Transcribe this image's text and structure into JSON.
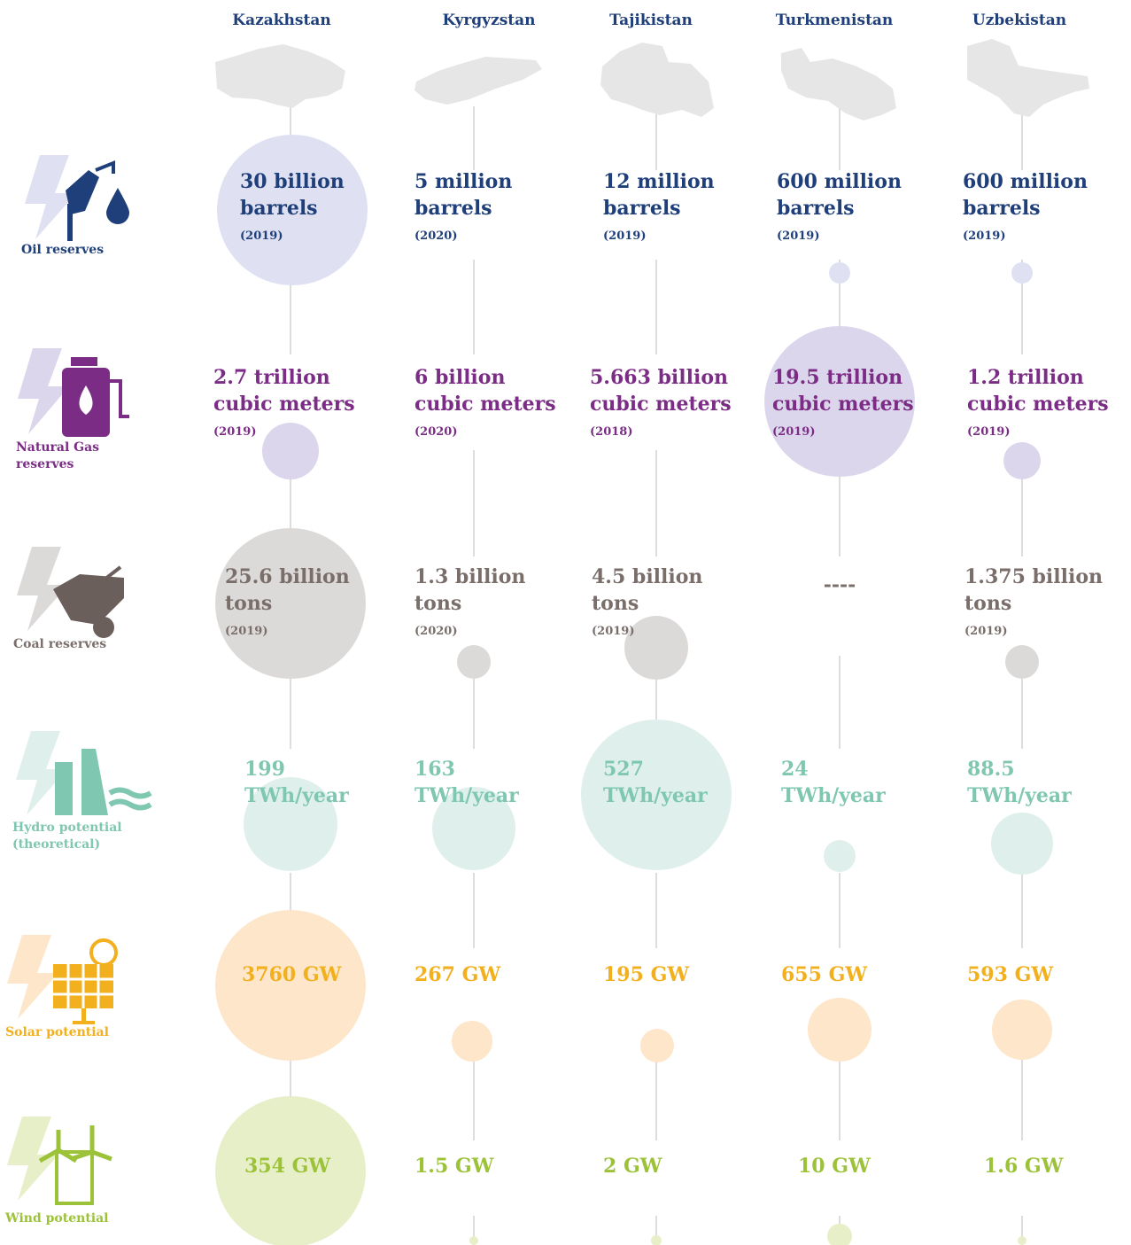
{
  "countries": [
    "Kazakhstan",
    "Kyrgyzstan",
    "Tajikistan",
    "Turkmenistan",
    "Uzbekistan"
  ],
  "rows": [
    {
      "label": [
        "Oil reserves"
      ],
      "cells": [
        {
          "value": [
            "30 billion",
            "barrels"
          ],
          "year": "(2019)"
        },
        {
          "value": [
            "5 million",
            "barrels"
          ],
          "year": "(2020)"
        },
        {
          "value": [
            "12 million",
            "barrels"
          ],
          "year": "(2019)"
        },
        {
          "value": [
            "600 million",
            "barrels"
          ],
          "year": "(2019)"
        },
        {
          "value": [
            "600 million",
            "barrels"
          ],
          "year": "(2019)"
        }
      ]
    },
    {
      "label": [
        "Natural Gas",
        "reserves"
      ],
      "cells": [
        {
          "value": [
            "2.7 trillion",
            "cubic meters"
          ],
          "year": "(2019)"
        },
        {
          "value": [
            "6 billion",
            "cubic meters"
          ],
          "year": "(2020)"
        },
        {
          "value": [
            "5.663 billion",
            "cubic meters"
          ],
          "year": "(2018)"
        },
        {
          "value": [
            "19.5 trillion",
            "cubic meters"
          ],
          "year": "(2019)"
        },
        {
          "value": [
            "1.2 trillion",
            "cubic meters"
          ],
          "year": "(2019)"
        }
      ]
    },
    {
      "label": [
        "Coal reserves"
      ],
      "cells": [
        {
          "value": [
            "25.6 billion",
            "tons"
          ],
          "year": "(2019)"
        },
        {
          "value": [
            "1.3 billion",
            "tons"
          ],
          "year": "(2020)"
        },
        {
          "value": [
            "4.5 billion",
            "tons"
          ],
          "year": "(2019)"
        },
        {
          "value": [
            "----"
          ]
        },
        {
          "value": [
            "1.375 billion",
            "tons"
          ],
          "year": "(2019)"
        }
      ]
    },
    {
      "label": [
        "Hydro potential",
        "(theoretical)"
      ],
      "cells": [
        {
          "value": [
            "199",
            "TWh/year"
          ]
        },
        {
          "value": [
            "163",
            "TWh/year"
          ]
        },
        {
          "value": [
            "527",
            "TWh/year"
          ]
        },
        {
          "value": [
            "24",
            "TWh/year"
          ]
        },
        {
          "value": [
            "88.5",
            "TWh/year"
          ]
        }
      ]
    },
    {
      "label": [
        "Solar potential"
      ],
      "cells": [
        {
          "value": [
            "3760 GW"
          ]
        },
        {
          "value": [
            "267 GW"
          ]
        },
        {
          "value": [
            "195 GW"
          ]
        },
        {
          "value": [
            "655 GW"
          ]
        },
        {
          "value": [
            "593 GW"
          ]
        }
      ]
    },
    {
      "label": [
        "Wind potential"
      ],
      "cells": [
        {
          "value": [
            "354 GW"
          ]
        },
        {
          "value": [
            "1.5 GW"
          ]
        },
        {
          "value": [
            "2 GW"
          ]
        },
        {
          "value": [
            "10 GW"
          ]
        },
        {
          "value": [
            "1.6 GW"
          ]
        }
      ]
    }
  ]
}
